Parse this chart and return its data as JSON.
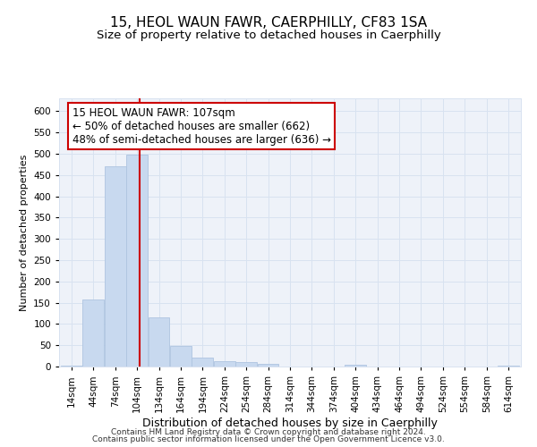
{
  "title": "15, HEOL WAUN FAWR, CAERPHILLY, CF83 1SA",
  "subtitle": "Size of property relative to detached houses in Caerphilly",
  "xlabel": "Distribution of detached houses by size in Caerphilly",
  "ylabel": "Number of detached properties",
  "bar_color": "#c8d9ef",
  "bar_edge_color": "#aec4e0",
  "vline_x": 107,
  "vline_color": "#cc0000",
  "categories": [
    14,
    44,
    74,
    104,
    134,
    164,
    194,
    224,
    254,
    284,
    314,
    344,
    374,
    404,
    434,
    464,
    494,
    524,
    554,
    584,
    614
  ],
  "values": [
    3,
    158,
    470,
    497,
    115,
    48,
    22,
    12,
    10,
    7,
    0,
    0,
    0,
    5,
    0,
    0,
    0,
    0,
    0,
    0,
    3
  ],
  "bin_width": 30,
  "ylim": [
    0,
    630
  ],
  "yticks": [
    0,
    50,
    100,
    150,
    200,
    250,
    300,
    350,
    400,
    450,
    500,
    550,
    600
  ],
  "annotation_line1": "15 HEOL WAUN FAWR: 107sqm",
  "annotation_line2": "← 50% of detached houses are smaller (662)",
  "annotation_line3": "48% of semi-detached houses are larger (636) →",
  "annotation_box_color": "#ffffff",
  "annotation_border_color": "#cc0000",
  "grid_color": "#d8e2f0",
  "background_color": "#eef2f9",
  "footer_line1": "Contains HM Land Registry data © Crown copyright and database right 2024.",
  "footer_line2": "Contains public sector information licensed under the Open Government Licence v3.0.",
  "title_fontsize": 11,
  "subtitle_fontsize": 9.5,
  "xlabel_fontsize": 9,
  "ylabel_fontsize": 8,
  "tick_fontsize": 7.5,
  "annotation_fontsize": 8.5,
  "footer_fontsize": 6.5
}
